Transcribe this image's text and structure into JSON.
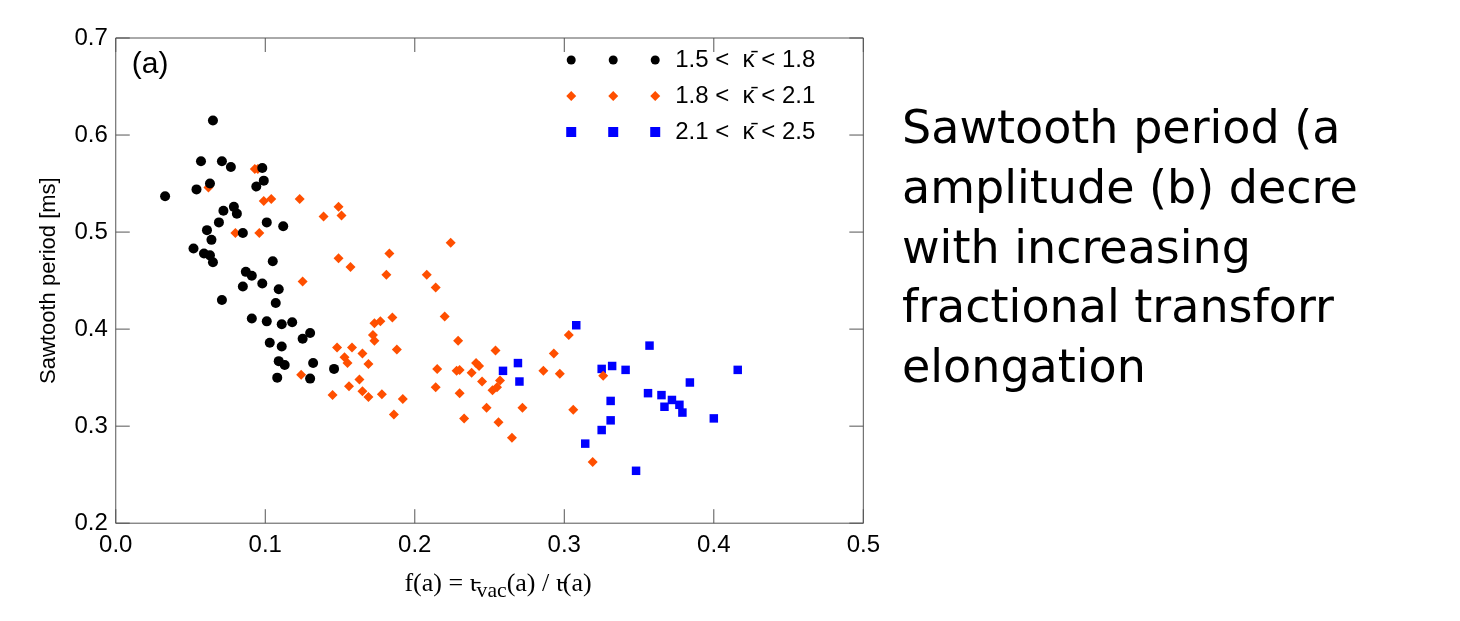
{
  "chart_data": {
    "type": "scatter",
    "xlabel": "f(a) = ι̵$_{vac}$(a) / ι̵(a)",
    "ylabel": "Sawtooth period [ms]",
    "xlim": [
      0,
      0.5
    ],
    "ylim": [
      0.2,
      0.7
    ],
    "xticks": [
      {
        "value": 0,
        "label": "0.0"
      },
      0.1,
      0.2,
      0.3,
      0.4,
      0.5
    ],
    "yticks": [
      0.2,
      0.3,
      0.4,
      0.5,
      0.6,
      0.7
    ],
    "grid": false,
    "legend": "top right",
    "annotations": [
      "(a)",
      "Sawtooth period (a\namplitude (b) decre\nwith increasing\nfractional transforr\nelongation"
    ],
    "series": [
      {
        "name": "1.5 <  κ̄ < 1.8",
        "color": "#000000",
        "marker": "circle",
        "x": [
          0.065,
          0.057,
          0.071,
          0.077,
          0.098,
          0.063,
          0.099,
          0.094,
          0.054,
          0.033,
          0.079,
          0.072,
          0.081,
          0.069,
          0.101,
          0.112,
          0.061,
          0.085,
          0.064,
          0.052,
          0.059,
          0.063,
          0.065,
          0.105,
          0.087,
          0.091,
          0.098,
          0.085,
          0.109,
          0.107,
          0.071,
          0.091,
          0.101,
          0.111,
          0.118,
          0.13,
          0.125,
          0.103,
          0.111,
          0.109,
          0.113,
          0.132,
          0.146,
          0.108,
          0.13
        ],
        "values": [
          0.615,
          0.573,
          0.573,
          0.567,
          0.566,
          0.55,
          0.553,
          0.547,
          0.544,
          0.537,
          0.526,
          0.522,
          0.519,
          0.51,
          0.51,
          0.506,
          0.502,
          0.499,
          0.492,
          0.483,
          0.478,
          0.476,
          0.469,
          0.47,
          0.459,
          0.455,
          0.447,
          0.444,
          0.441,
          0.427,
          0.43,
          0.411,
          0.408,
          0.405,
          0.407,
          0.396,
          0.39,
          0.386,
          0.382,
          0.367,
          0.363,
          0.365,
          0.359,
          0.35,
          0.349
        ]
      },
      {
        "name": "1.8 <  κ̄ < 2.1",
        "color": "#ff4f00",
        "marker": "diamond",
        "x": [
          0.093,
          0.095,
          0.062,
          0.099,
          0.104,
          0.123,
          0.149,
          0.139,
          0.151,
          0.08,
          0.096,
          0.149,
          0.157,
          0.125,
          0.148,
          0.158,
          0.153,
          0.155,
          0.124,
          0.156,
          0.145,
          0.183,
          0.181,
          0.208,
          0.214,
          0.185,
          0.173,
          0.177,
          0.172,
          0.173,
          0.188,
          0.165,
          0.169,
          0.215,
          0.163,
          0.214,
          0.165,
          0.169,
          0.178,
          0.192,
          0.186,
          0.224,
          0.22,
          0.229,
          0.254,
          0.293,
          0.303,
          0.228,
          0.23,
          0.241,
          0.243,
          0.238,
          0.286,
          0.297,
          0.326,
          0.245,
          0.257,
          0.255,
          0.252,
          0.23,
          0.248,
          0.272,
          0.306,
          0.233,
          0.256,
          0.265,
          0.319
        ],
        "values": [
          0.565,
          0.565,
          0.546,
          0.532,
          0.534,
          0.534,
          0.526,
          0.516,
          0.517,
          0.499,
          0.499,
          0.473,
          0.464,
          0.449,
          0.381,
          0.381,
          0.371,
          0.365,
          0.353,
          0.341,
          0.332,
          0.478,
          0.456,
          0.456,
          0.443,
          0.412,
          0.406,
          0.408,
          0.394,
          0.388,
          0.379,
          0.375,
          0.364,
          0.359,
          0.348,
          0.34,
          0.336,
          0.33,
          0.333,
          0.328,
          0.312,
          0.489,
          0.413,
          0.388,
          0.378,
          0.375,
          0.394,
          0.357,
          0.358,
          0.365,
          0.362,
          0.355,
          0.357,
          0.354,
          0.352,
          0.346,
          0.347,
          0.34,
          0.337,
          0.334,
          0.319,
          0.319,
          0.317,
          0.308,
          0.304,
          0.288,
          0.263
        ]
      },
      {
        "name": "2.1 <  κ̄ < 2.5",
        "color": "#0000ff",
        "marker": "square",
        "x": [
          0.308,
          0.357,
          0.259,
          0.269,
          0.27,
          0.325,
          0.332,
          0.341,
          0.416,
          0.384,
          0.356,
          0.365,
          0.372,
          0.377,
          0.367,
          0.379,
          0.331,
          0.4,
          0.331,
          0.325,
          0.314,
          0.348
        ],
        "values": [
          0.404,
          0.383,
          0.357,
          0.365,
          0.346,
          0.359,
          0.362,
          0.358,
          0.358,
          0.345,
          0.334,
          0.332,
          0.327,
          0.322,
          0.32,
          0.314,
          0.326,
          0.308,
          0.306,
          0.296,
          0.282,
          0.254
        ]
      }
    ]
  }
}
